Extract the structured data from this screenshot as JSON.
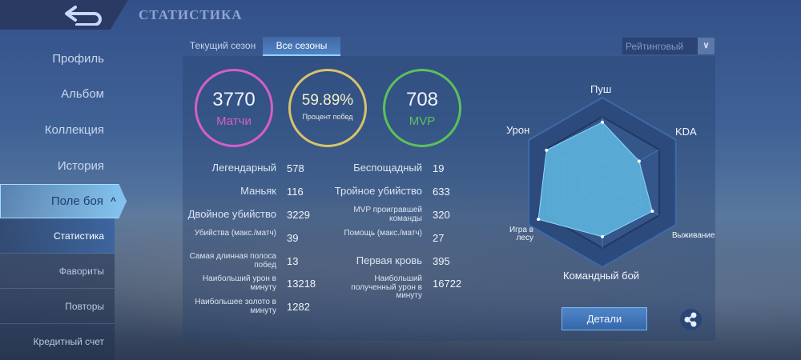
{
  "header": {
    "title": "СТАТИСТИКА",
    "back_icon": "back-arrow-icon"
  },
  "sidebar": {
    "items": [
      {
        "label": "Профиль"
      },
      {
        "label": "Альбом"
      },
      {
        "label": "Коллекция"
      },
      {
        "label": "История"
      }
    ],
    "active": {
      "label": "Поле боя",
      "icon": "chevron-up-icon"
    },
    "sub_items": [
      {
        "label": "Статистика",
        "active": true
      },
      {
        "label": "Фавориты"
      },
      {
        "label": "Повторы"
      },
      {
        "label": "Кредитный счет"
      }
    ]
  },
  "tabs": [
    {
      "label": "Текущий сезон"
    },
    {
      "label": "Все сезоны",
      "active": true
    }
  ],
  "mode_select": {
    "value": "Рейтинговый"
  },
  "summary": [
    {
      "value": "3770",
      "label": "Матчи",
      "color": "#d65ec9"
    },
    {
      "value": "59.89%",
      "label": "Процент побед",
      "color": "#d8c36a"
    },
    {
      "value": "708",
      "label": "MVP",
      "color": "#5bc25a"
    }
  ],
  "stats_left": [
    {
      "label": "Легендарный",
      "value": "578"
    },
    {
      "label": "Маньяк",
      "value": "116"
    },
    {
      "label": "Двойное убийство",
      "value": "3229"
    },
    {
      "label": "Убийства (макс./матч)",
      "value": "39"
    },
    {
      "label": "Самая длинная полоса побед",
      "value": "13"
    },
    {
      "label": "Наибольший урон в минуту",
      "value": "13218"
    },
    {
      "label": "Наибольшее золото в минуту",
      "value": "1282"
    }
  ],
  "stats_right": [
    {
      "label": "Беспощадный",
      "value": "19"
    },
    {
      "label": "Тройное убийство",
      "value": "633"
    },
    {
      "label": "MVP проигравшей команды",
      "value": "320"
    },
    {
      "label": "Помощь (макс./матч)",
      "value": "27"
    },
    {
      "label": "Первая кровь",
      "value": "395"
    },
    {
      "label": "Наибольший полученный урон в минуту",
      "value": "16722"
    }
  ],
  "radar": {
    "axes": [
      "Пуш",
      "KDA",
      "Выживание",
      "Командный бой",
      "Игра в лесу",
      "Урон"
    ],
    "values": [
      0.71,
      0.5,
      0.68,
      0.64,
      0.87,
      0.76
    ],
    "fill_color": "#5fb8e0"
  },
  "details_button": "Детали",
  "share_icon": "share-icon"
}
